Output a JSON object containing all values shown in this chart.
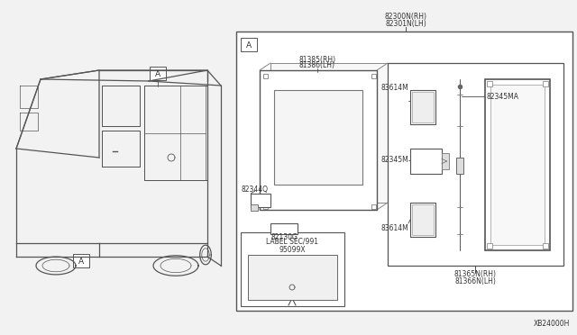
{
  "bg_color": "#f2f2f2",
  "diagram_id": "XB24000H",
  "parts": {
    "p82300N": "82300N(RH)",
    "p82301N": "82301N(LH)",
    "p81385": "81385(RH)",
    "p81386": "81386(LH)",
    "p82344Q": "82344Q",
    "p82130G": "82130G",
    "p83614M_top": "83614M",
    "p82345MA": "82345MA",
    "p82345M": "82345M",
    "p83614M_bot": "83614M",
    "p81365N": "81365N(RH)",
    "p81366N": "81366N(LH)",
    "label_sec": "LABEL SEC/991",
    "label_num": "95099X"
  }
}
